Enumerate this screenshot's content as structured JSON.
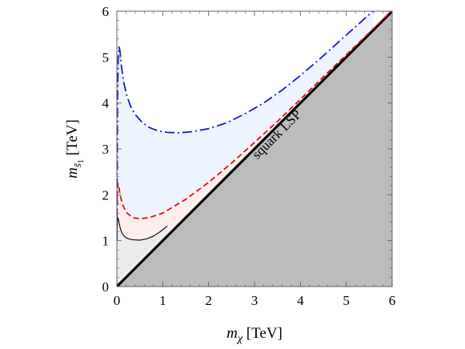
{
  "chart_data": {
    "type": "line",
    "title": "",
    "xlabel": "m_χ [TeV]",
    "ylabel": "m_s̃1 [TeV]",
    "xlabel_parts": {
      "var": "m",
      "sub": "χ",
      "unit": " [TeV]"
    },
    "ylabel_parts": {
      "var": "m",
      "sub": "s̃",
      "subsub": "1",
      "unit": " [TeV]"
    },
    "xlim": [
      0,
      6
    ],
    "ylim": [
      0,
      6
    ],
    "x_ticks": [
      0,
      1,
      2,
      3,
      4,
      5,
      6
    ],
    "y_ticks": [
      0,
      1,
      2,
      3,
      4,
      5,
      6
    ],
    "x_tick_labels": [
      "0",
      "1",
      "2",
      "3",
      "4",
      "5",
      "6"
    ],
    "y_tick_labels": [
      "0",
      "1",
      "2",
      "3",
      "4",
      "5",
      "6"
    ],
    "grid": false,
    "legend": "none",
    "annotations": [
      {
        "text": "squark LSP",
        "x": 3.55,
        "y": 3.25,
        "rotate_along": "diagonal"
      }
    ],
    "regions": [
      {
        "name": "squark LSP",
        "fill": "#bcbcbc",
        "description": "below m_s̃1 = m_χ"
      }
    ],
    "series": [
      {
        "style": "solid-thin",
        "color": "#000000",
        "fill": "#ebebeb",
        "x": [
          0.0,
          0.01,
          0.02,
          0.03,
          0.05,
          0.08,
          0.12,
          0.18,
          0.25,
          0.35,
          0.5,
          0.65,
          0.8,
          0.95,
          1.1
        ],
        "y": [
          1.0,
          1.42,
          1.5,
          1.48,
          1.38,
          1.25,
          1.15,
          1.08,
          1.04,
          1.02,
          1.01,
          1.04,
          1.1,
          1.2,
          1.32
        ]
      },
      {
        "style": "dashed",
        "color": "#dd1111",
        "fill": "#fdeeee",
        "x": [
          0.0,
          0.01,
          0.02,
          0.04,
          0.07,
          0.12,
          0.2,
          0.35,
          0.5,
          0.7,
          1.0,
          1.5,
          2.0,
          2.5,
          3.0,
          3.5,
          4.0,
          4.5,
          5.0,
          5.5,
          6.0
        ],
        "y": [
          1.0,
          2.05,
          2.25,
          2.2,
          2.0,
          1.8,
          1.62,
          1.5,
          1.48,
          1.5,
          1.6,
          1.9,
          2.27,
          2.69,
          3.14,
          3.6,
          4.08,
          4.57,
          5.05,
          5.53,
          6.02
        ]
      },
      {
        "style": "dash-dot",
        "color": "#1a1ac8",
        "fill": "#edf4fd",
        "x": [
          0.0,
          0.015,
          0.03,
          0.05,
          0.07,
          0.1,
          0.15,
          0.22,
          0.3,
          0.4,
          0.55,
          0.7,
          0.9,
          1.1,
          1.35,
          1.6,
          2.0,
          2.4,
          2.8,
          3.2,
          3.6,
          4.0,
          4.4,
          4.8,
          5.2,
          5.6
        ],
        "y": [
          1.0,
          4.2,
          5.0,
          5.22,
          5.12,
          4.8,
          4.45,
          4.15,
          3.93,
          3.75,
          3.58,
          3.47,
          3.39,
          3.36,
          3.35,
          3.37,
          3.44,
          3.57,
          3.77,
          4.0,
          4.28,
          4.6,
          4.94,
          5.3,
          5.66,
          6.02
        ]
      }
    ]
  }
}
